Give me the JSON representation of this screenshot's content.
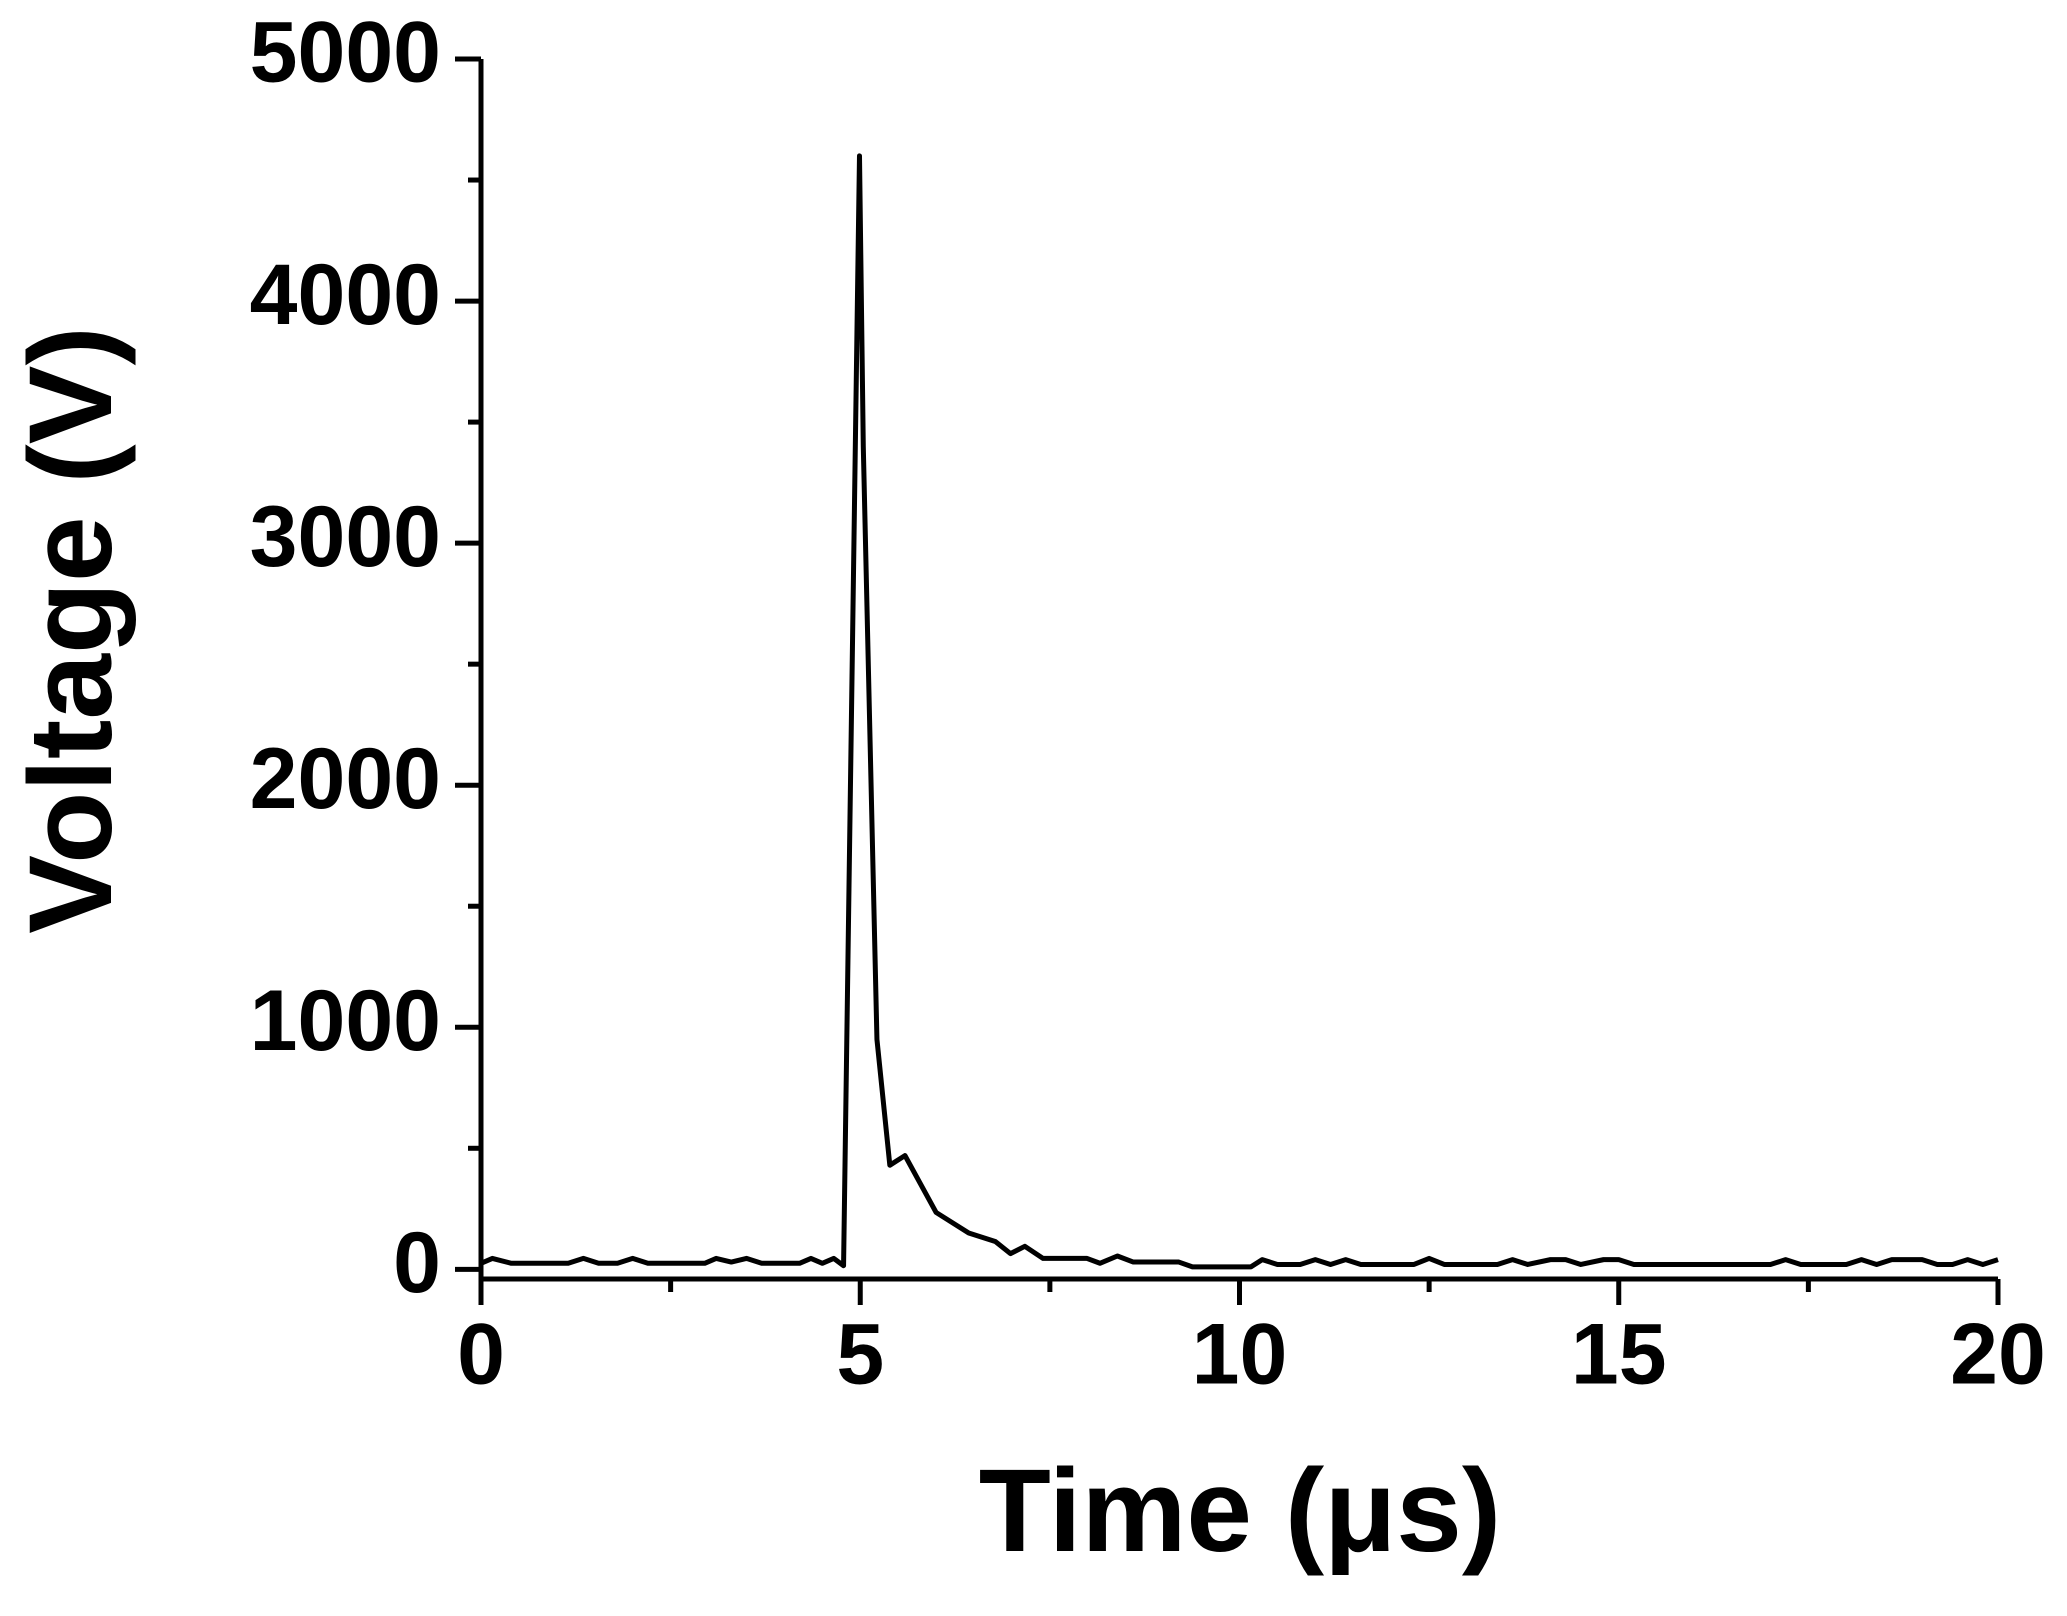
{
  "chart_data": {
    "type": "line",
    "x_label": "Time (μs)",
    "y_label": "Voltage (V)",
    "xlim": [
      0,
      20
    ],
    "xticks": [
      0,
      5,
      10,
      15,
      20
    ],
    "xminorticks": [
      2.5,
      7.5,
      12.5,
      17.5
    ],
    "ylim": [
      -40,
      5000
    ],
    "yticks": [
      0,
      1000,
      2000,
      3000,
      4000,
      5000
    ],
    "yminorticks": [
      500,
      1500,
      2500,
      3500,
      4500
    ],
    "grid": false,
    "series": [
      {
        "color": "#000000",
        "x": [
          0,
          0.15,
          0.4,
          1.15,
          1.35,
          1.55,
          1.8,
          2.0,
          2.2,
          2.95,
          3.1,
          3.3,
          3.5,
          3.7,
          4.2,
          4.35,
          4.5,
          4.65,
          4.78,
          4.99,
          5.04,
          5.22,
          5.39,
          5.59,
          6.0,
          6.43,
          6.78,
          6.98,
          7.17,
          7.41,
          7.99,
          8.16,
          8.39,
          8.6,
          9.2,
          9.38,
          10.15,
          10.3,
          10.5,
          10.8,
          11.0,
          11.2,
          11.4,
          11.6,
          12.3,
          12.5,
          12.7,
          13.4,
          13.6,
          13.8,
          14.1,
          14.3,
          14.5,
          14.8,
          15.0,
          15.2,
          17.0,
          17.2,
          17.4,
          18.0,
          18.2,
          18.4,
          18.6,
          19.0,
          19.2,
          19.4,
          19.6,
          19.8,
          20
        ],
        "values": [
          25,
          45,
          25,
          25,
          45,
          25,
          25,
          45,
          25,
          25,
          45,
          30,
          45,
          25,
          25,
          45,
          25,
          45,
          15,
          4600,
          3400,
          950,
          430,
          470,
          235,
          150,
          115,
          65,
          95,
          45,
          45,
          25,
          55,
          30,
          30,
          10,
          10,
          40,
          20,
          20,
          40,
          20,
          40,
          20,
          20,
          45,
          20,
          20,
          40,
          20,
          40,
          40,
          20,
          40,
          40,
          20,
          20,
          40,
          20,
          20,
          40,
          20,
          40,
          40,
          20,
          20,
          40,
          20,
          40
        ]
      }
    ]
  }
}
